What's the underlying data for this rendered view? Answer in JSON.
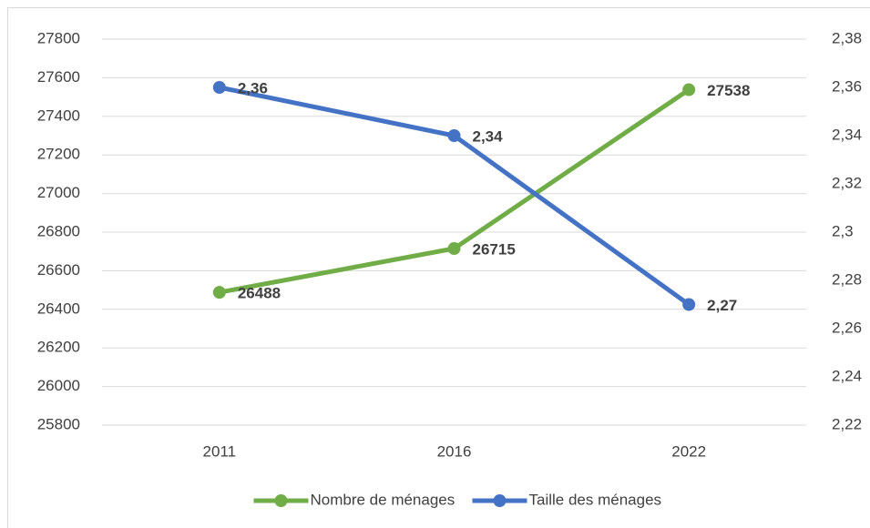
{
  "chart_data": {
    "type": "line",
    "categories": [
      "2011",
      "2016",
      "2022"
    ],
    "series": [
      {
        "name": "Nombre de ménages",
        "color": "#70ad47",
        "values": [
          26488,
          26715,
          27538
        ]
      },
      {
        "name": "Taille des ménages",
        "color": "#4472c4",
        "axis": "y2",
        "values": [
          2.36,
          2.34,
          2.27
        ],
        "value_labels": [
          "2,36",
          "2,34",
          "2,27"
        ]
      }
    ],
    "ylim": [
      25800,
      27800
    ],
    "yticks": [
      25800,
      26000,
      26200,
      26400,
      26600,
      26800,
      27000,
      27200,
      27400,
      27600,
      27800
    ],
    "y2lim": [
      2.22,
      2.38
    ],
    "y2ticks": [
      {
        "value": 2.22,
        "label": "2,22"
      },
      {
        "value": 2.24,
        "label": "2,24"
      },
      {
        "value": 2.26,
        "label": "2,26"
      },
      {
        "value": 2.28,
        "label": "2,28"
      },
      {
        "value": 2.3,
        "label": "2,3"
      },
      {
        "value": 2.32,
        "label": "2,32"
      },
      {
        "value": 2.34,
        "label": "2,34"
      },
      {
        "value": 2.36,
        "label": "2,36"
      },
      {
        "value": 2.38,
        "label": "2,38"
      }
    ],
    "grid": true,
    "legend": "bottom"
  }
}
